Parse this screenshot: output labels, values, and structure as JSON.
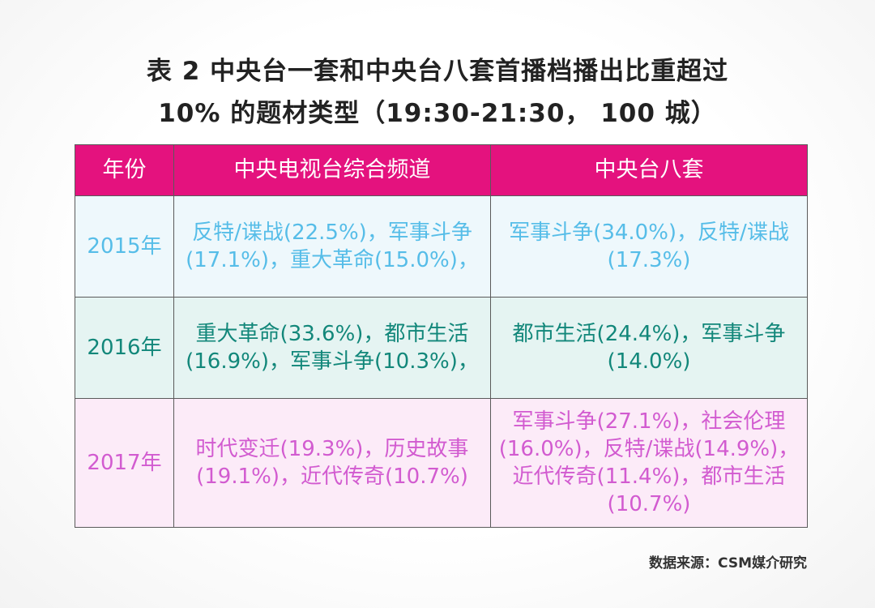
{
  "title": {
    "line1": "表 2 中央台一套和中央台八套首播档播出比重超过",
    "line2": "10% 的题材类型（19:30-21:30， 100 城）"
  },
  "table": {
    "headers": [
      "年份",
      "中央电视台综合频道",
      "中央台八套"
    ],
    "rows": [
      {
        "year": "2015年",
        "cctv1": "反特/谍战(22.5%)，军事斗争(17.1%)，重大革命(15.0%)，",
        "cctv8": "军事斗争(34.0%)，反特/谍战(17.3%)"
      },
      {
        "year": "2016年",
        "cctv1": "重大革命(33.6%)，都市生活(16.9%)，军事斗争(10.3%)，",
        "cctv8": "都市生活(24.4%)，军事斗争(14.0%)"
      },
      {
        "year": "2017年",
        "cctv1": "时代变迁(19.3%)，历史故事(19.1%)，近代传奇(10.7%)",
        "cctv8": "军事斗争(27.1%)，社会伦理(16.0%)，反特/谍战(14.9%)，近代传奇(11.4%)，都市生活(10.7%)"
      }
    ]
  },
  "source": "数据来源：CSM媒介研究",
  "colors": {
    "header_bg": "#e4127e",
    "row_2015_text": "#56bde8",
    "row_2016_text": "#12877a",
    "row_2017_text": "#d25bd0"
  }
}
